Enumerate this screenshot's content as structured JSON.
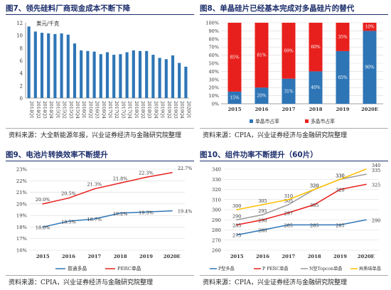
{
  "colors": {
    "title": "#1b2d6b",
    "bar_blue": "#2e75b6",
    "red": "#e8201d",
    "gray": "#9a9a9a",
    "yellow": "#ffc000",
    "grid": "#d9d9d9"
  },
  "fig7": {
    "title": "图7、领先硅料厂商现金成本不断下降",
    "source": "资料来源：大全新能源年报，兴业证券经济与金融研究院整理",
    "chart_data": {
      "type": "bar",
      "title": "图7、领先硅料厂商现金成本不断下降",
      "unit_label": "美元/千克",
      "ylim": [
        0,
        12
      ],
      "yticks": [
        0,
        2,
        4,
        6,
        8,
        10,
        12
      ],
      "categories": [
        "2014Q1",
        "2014Q2",
        "2014Q3",
        "2014Q4",
        "2015Q1",
        "2015Q2",
        "2015Q3",
        "2015Q4",
        "2016Q1",
        "2016Q2",
        "2016Q3",
        "2016Q4",
        "2017Q1",
        "2017Q2",
        "2017Q3",
        "2017Q4",
        "2018Q1",
        "2018Q2",
        "2018Q3",
        "2018Q4",
        "2019Q1",
        "2019Q2",
        "2019Q3",
        "2019Q4",
        "2020Q1"
      ],
      "values": [
        11.4,
        10.6,
        10.4,
        10.3,
        10.2,
        10.3,
        10.1,
        8.7,
        7.6,
        7.5,
        7.4,
        7.0,
        7.3,
        6.9,
        7.0,
        7.3,
        7.6,
        7.5,
        7.5,
        6.9,
        6.4,
        6.2,
        6.8,
        5.6,
        5.0
      ]
    }
  },
  "fig8": {
    "title": "图8、单晶硅片已经基本完成对多晶硅片的替代",
    "source": "资料来源：CPIA，兴业证券经济与金融研究院整理",
    "chart_data": {
      "type": "bar",
      "stacked": true,
      "categories": [
        "2015",
        "2016",
        "2017",
        "2018",
        "2019",
        "2020E"
      ],
      "ylim": [
        0,
        100
      ],
      "yticks": [
        "0%",
        "10%",
        "20%",
        "30%",
        "40%",
        "50%",
        "60%",
        "70%",
        "80%",
        "90%",
        "100%"
      ],
      "series": [
        {
          "name": "单晶市占率",
          "values": [
            15,
            20,
            31,
            40,
            65,
            90
          ],
          "labels": [
            "15%",
            "20%",
            "31%",
            "40%",
            "65%",
            "90%"
          ]
        },
        {
          "name": "多晶市占率",
          "values": [
            85,
            81,
            69,
            60,
            35,
            10
          ],
          "labels": [
            "85%",
            "81%",
            "69%",
            "60%",
            "35%",
            "10%"
          ]
        }
      ],
      "legend": "bottom"
    }
  },
  "fig9": {
    "title": "图9、电池片转换效率不断提升",
    "source": "资料来源：CPIA，兴业证券经济与金融研究院整理",
    "chart_data": {
      "type": "line",
      "categories": [
        "2015",
        "2016",
        "2017",
        "2018",
        "2019",
        "2020E"
      ],
      "ylim": [
        16,
        23
      ],
      "yticks": [
        "16%",
        "17%",
        "18%",
        "19%",
        "20%",
        "21%",
        "22%",
        "23%"
      ],
      "series": [
        {
          "name": "普通多晶",
          "values": [
            18.0,
            18.5,
            18.7,
            19.2,
            19.3,
            19.4
          ],
          "labels": [
            "18.0%",
            "18.5%",
            "18.7%",
            "19.2%",
            "19.3%",
            "19.4%"
          ]
        },
        {
          "name": "PERC单晶",
          "values": [
            20.0,
            20.5,
            21.3,
            21.8,
            22.3,
            22.7
          ],
          "labels": [
            "20.0%",
            "20.5%",
            "21.3%",
            "21.8%",
            "22.3%",
            "22.7%"
          ]
        }
      ],
      "legend": "bottom"
    }
  },
  "fig10": {
    "title": "图10、组件功率不断提升（60片）",
    "source": "资料来源：CPIA，兴业证券经济与金融研究院整理",
    "chart_data": {
      "type": "line",
      "categories": [
        "2015",
        "2016",
        "2017",
        "2018",
        "2019",
        "2020E"
      ],
      "ylim": [
        260,
        340
      ],
      "yticks": [
        "260",
        "270",
        "280",
        "290",
        "300",
        "310",
        "320",
        "330",
        "340"
      ],
      "series": [
        {
          "name": "P型多晶",
          "values": [
            275,
            280,
            285,
            285,
            285,
            290
          ],
          "labels": [
            "275",
            "280",
            "285",
            "285",
            "285",
            "290"
          ]
        },
        {
          "name": "P PERC单晶",
          "values": [
            285,
            290,
            297,
            305,
            320,
            325
          ],
          "labels": [
            "285",
            "290",
            "297",
            "305",
            "320",
            "325"
          ]
        },
        {
          "name": "N型Topcon单晶",
          "values": [
            290,
            295,
            305,
            320,
            330,
            335
          ],
          "labels": [
            "290",
            "295",
            "305",
            "320",
            "330",
            "335"
          ]
        },
        {
          "name": "异质结单晶",
          "values": [
            300,
            305,
            310,
            320,
            330,
            340
          ],
          "labels": [
            "300",
            "305",
            "310",
            "320",
            "330",
            "340"
          ]
        }
      ],
      "legend": "bottom"
    }
  }
}
